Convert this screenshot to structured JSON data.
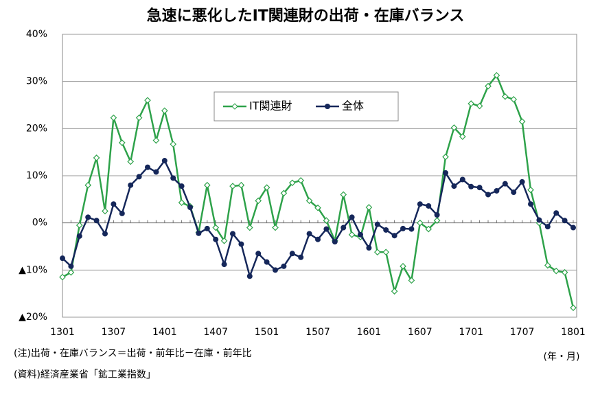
{
  "chart_data": {
    "type": "line",
    "title": "急速に悪化したIT関連財の出荷・在庫バランス",
    "notes": [
      "(注)出荷・在庫バランス＝出荷・前年比－在庫・前年比",
      "(資料)経済産業省「鉱工業指数」"
    ],
    "x_label": "(年・月)",
    "categories": [
      "1301",
      null,
      null,
      null,
      null,
      null,
      "1307",
      null,
      null,
      null,
      null,
      null,
      "1401",
      null,
      null,
      null,
      null,
      null,
      "1407",
      null,
      null,
      null,
      null,
      null,
      "1501",
      null,
      null,
      null,
      null,
      null,
      "1507",
      null,
      null,
      null,
      null,
      null,
      "1601",
      null,
      null,
      null,
      null,
      null,
      "1607",
      null,
      null,
      null,
      null,
      null,
      "1701",
      null,
      null,
      null,
      null,
      null,
      "1707",
      null,
      null,
      null,
      null,
      null,
      "1801"
    ],
    "series": [
      {
        "name": "IT関連財",
        "color": "#2ea24a",
        "marker": "diamond-open",
        "values": [
          -11.5,
          -10.5,
          -0.5,
          8,
          13.8,
          2.5,
          22.3,
          17,
          13,
          22.3,
          26,
          17.5,
          23.8,
          16.7,
          4.3,
          3.5,
          -2,
          8,
          -1,
          -3.8,
          7.8,
          8,
          -1,
          4.7,
          7.5,
          -1,
          6.3,
          8.5,
          9,
          4.7,
          3.2,
          0.5,
          -3.8,
          6,
          -2.5,
          -3,
          3.3,
          -6.2,
          -6.2,
          -14.5,
          -9.2,
          -12.2,
          0,
          -1.3,
          0.5,
          14,
          20.2,
          18.3,
          25.3,
          24.8,
          29,
          31.3,
          26.8,
          26.2,
          21.5,
          7,
          0,
          -9,
          -10.2,
          -10.5,
          -18
        ]
      },
      {
        "name": "全体",
        "color": "#15275a",
        "marker": "circle",
        "values": [
          -7.5,
          -9.2,
          -2.8,
          1.2,
          0.5,
          -2.3,
          4,
          2,
          8,
          9.8,
          11.8,
          10.8,
          13.2,
          9.5,
          7.8,
          3.3,
          -2.2,
          -1.2,
          -3.5,
          -8.8,
          -2.3,
          -4.5,
          -11.3,
          -6.5,
          -8.3,
          -10,
          -9.2,
          -6.5,
          -7.3,
          -2.3,
          -3.5,
          -1.3,
          -4,
          -1,
          1.2,
          -2.5,
          -5.3,
          -0.3,
          -1.5,
          -2.7,
          -1.2,
          -1.3,
          4,
          3.6,
          1.7,
          10.6,
          7.8,
          9.2,
          7.7,
          7.5,
          6,
          6.8,
          8.3,
          6.5,
          8.7,
          4,
          0.6,
          -0.8,
          2.1,
          0.5,
          -1
        ]
      }
    ],
    "ylim": [
      -20,
      40
    ],
    "yticks": [
      {
        "value": -20,
        "label": "▲20%"
      },
      {
        "value": -10,
        "label": "▲10%"
      },
      {
        "value": 0,
        "label": "0%"
      },
      {
        "value": 10,
        "label": "10%"
      },
      {
        "value": 20,
        "label": "20%"
      },
      {
        "value": 30,
        "label": "30%"
      },
      {
        "value": 40,
        "label": "40%"
      }
    ],
    "grid": true
  }
}
